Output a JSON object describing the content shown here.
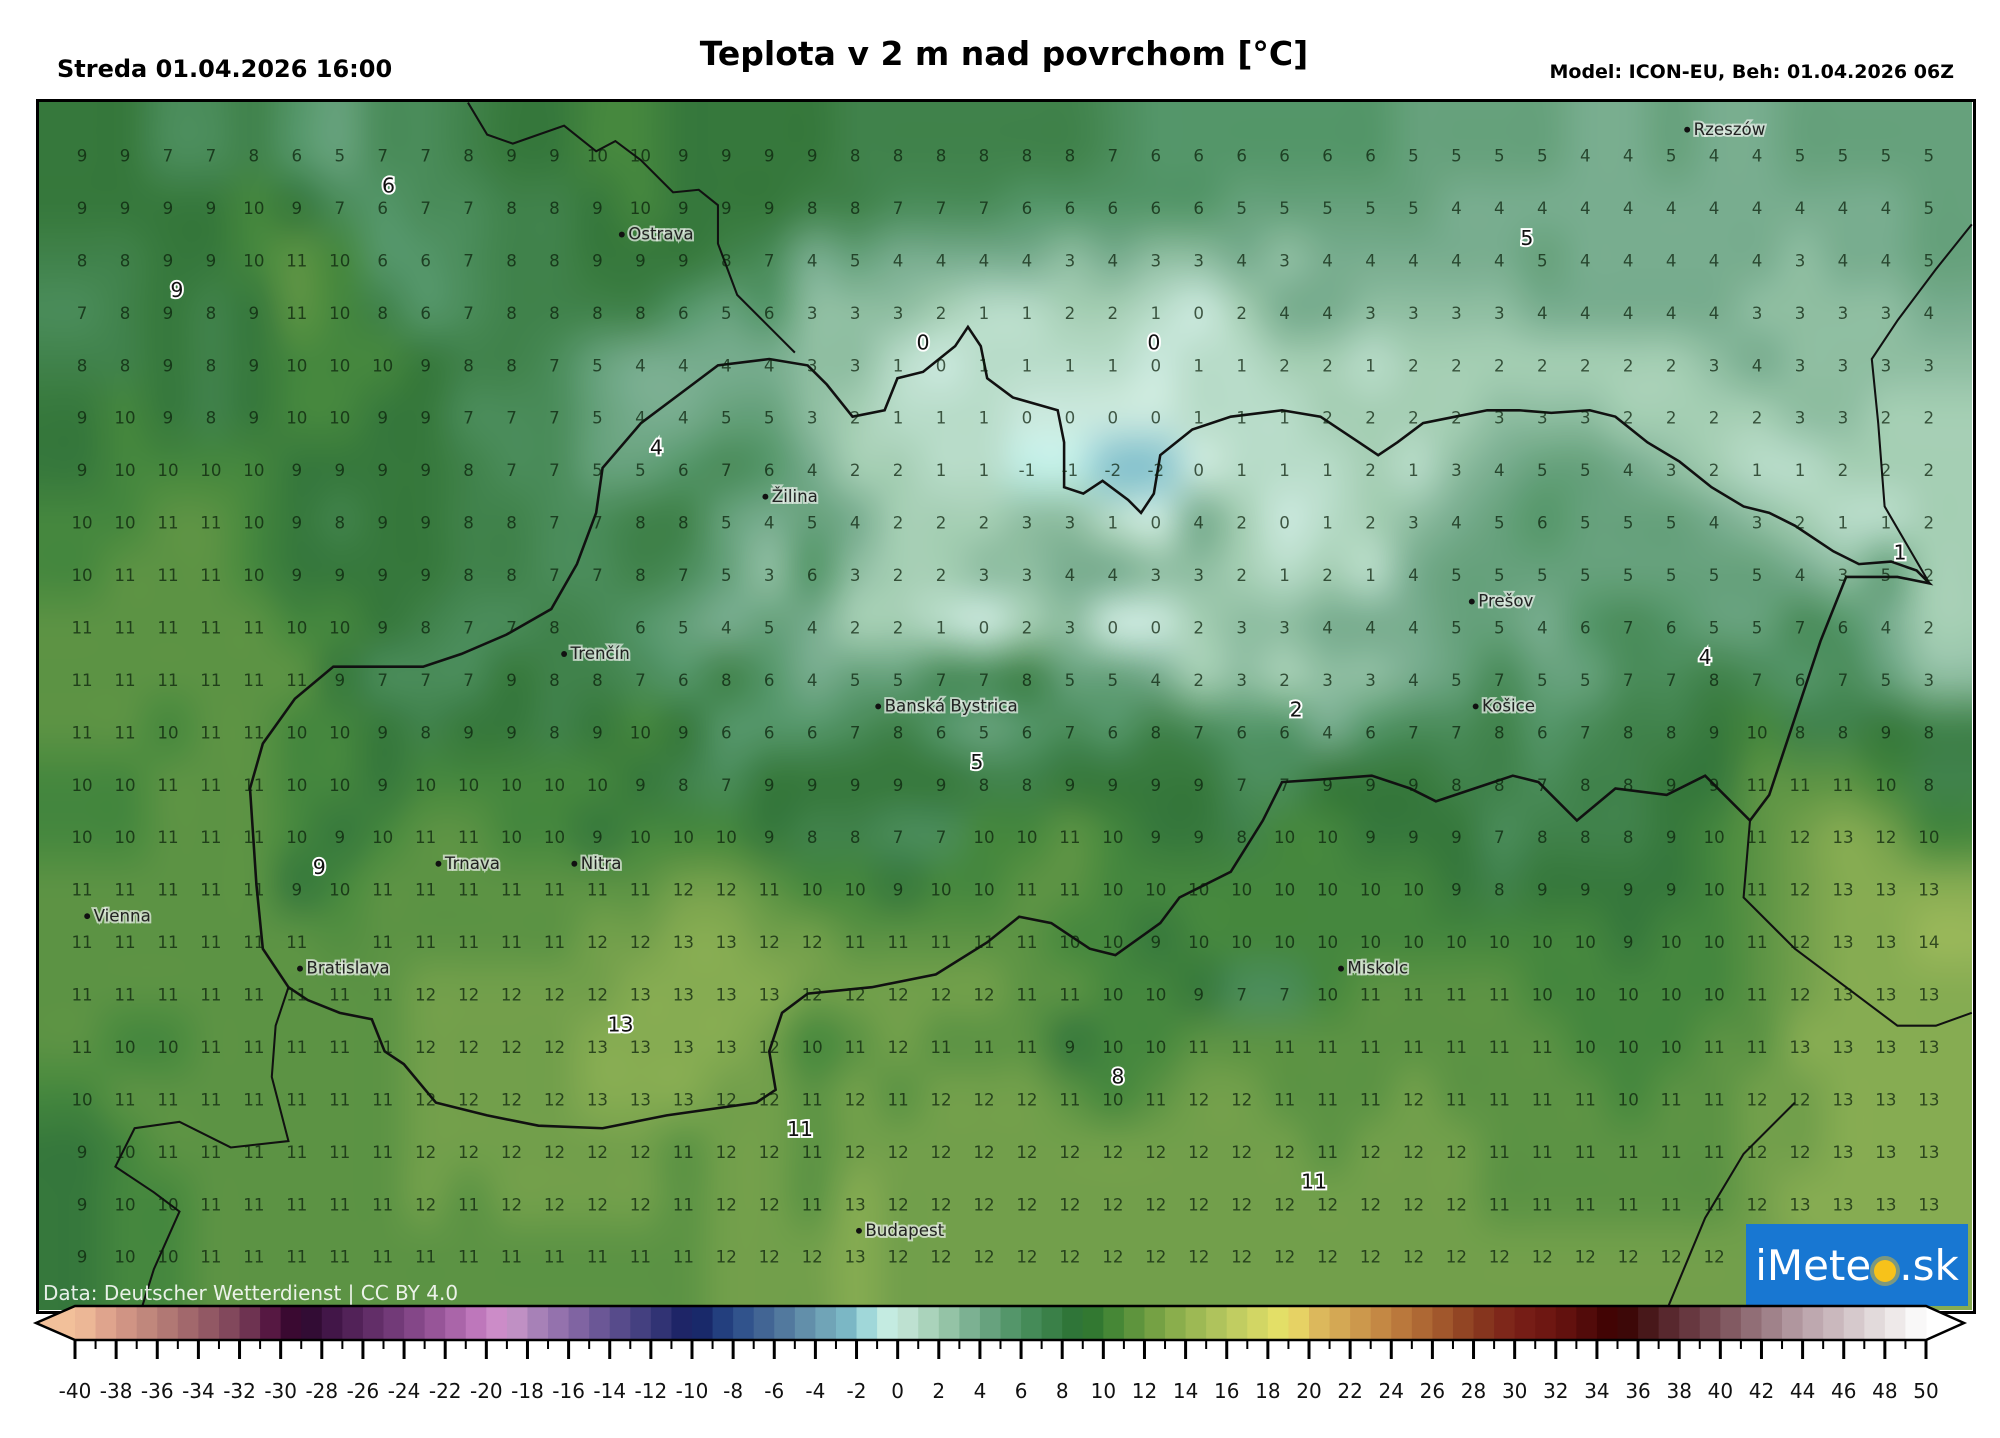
{
  "header": {
    "valid_time": "Streda 01.04.2026 16:00",
    "title": "Teplota v 2 m nad povrchom [°C]",
    "model_run": "Model: ICON-EU, Beh: 01.04.2026 06Z"
  },
  "attribution": "Data: Deutscher Wetterdienst | CC BY 4.0",
  "logo": {
    "text": "iMeteo.sk",
    "color": "#1877d2"
  },
  "cities": [
    {
      "name": "Rzeszów"
    },
    {
      "name": "Ostrava"
    },
    {
      "name": "Žilina"
    },
    {
      "name": "Prešov"
    },
    {
      "name": "Trenčín"
    },
    {
      "name": "Banská Bystrica"
    },
    {
      "name": "Košice"
    },
    {
      "name": "Trnava"
    },
    {
      "name": "Nitra"
    },
    {
      "name": "Vienna"
    },
    {
      "name": "Bratislava"
    },
    {
      "name": "Miskolc"
    },
    {
      "name": "Budapest"
    }
  ],
  "extrema_labels": [
    "6",
    "9",
    "0",
    "0",
    "5",
    "4",
    "1",
    "4",
    "2",
    "5",
    "9",
    "13",
    "8",
    "11",
    "11"
  ],
  "grid": {
    "unit": "°C",
    "values": [
      [
        9,
        9,
        7,
        7,
        8,
        6,
        5,
        7,
        7,
        8,
        9,
        9,
        10,
        10,
        9,
        9,
        9,
        9,
        8,
        8,
        8,
        8,
        8,
        8,
        7,
        6,
        6,
        6,
        6,
        6,
        6,
        5,
        5,
        5,
        5,
        4,
        4,
        5,
        4,
        4,
        5,
        5,
        5,
        5
      ],
      [
        9,
        9,
        9,
        9,
        10,
        9,
        7,
        6,
        7,
        7,
        8,
        8,
        9,
        10,
        9,
        9,
        9,
        8,
        8,
        7,
        7,
        7,
        6,
        6,
        6,
        6,
        6,
        5,
        5,
        5,
        5,
        5,
        4,
        4,
        4,
        4,
        4,
        4,
        4,
        4,
        4,
        4,
        4,
        5
      ],
      [
        8,
        8,
        9,
        9,
        10,
        11,
        10,
        6,
        6,
        7,
        8,
        8,
        9,
        9,
        9,
        8,
        7,
        4,
        5,
        4,
        4,
        4,
        4,
        3,
        4,
        3,
        3,
        4,
        3,
        4,
        4,
        4,
        4,
        4,
        5,
        4,
        4,
        4,
        4,
        4,
        3,
        4,
        4,
        5
      ],
      [
        7,
        8,
        9,
        8,
        9,
        11,
        10,
        8,
        6,
        7,
        8,
        8,
        8,
        8,
        6,
        5,
        6,
        3,
        3,
        3,
        2,
        1,
        1,
        2,
        2,
        1,
        0,
        2,
        4,
        4,
        3,
        3,
        3,
        3,
        4,
        4,
        4,
        4,
        4,
        3,
        3,
        3,
        3,
        4
      ],
      [
        8,
        8,
        9,
        8,
        9,
        10,
        10,
        10,
        9,
        8,
        8,
        7,
        5,
        4,
        4,
        4,
        4,
        3,
        3,
        1,
        0,
        1,
        1,
        1,
        1,
        0,
        1,
        1,
        2,
        2,
        1,
        2,
        2,
        2,
        2,
        2,
        2,
        2,
        3,
        4,
        3,
        3,
        3,
        3
      ],
      [
        9,
        10,
        9,
        8,
        9,
        10,
        10,
        9,
        9,
        7,
        7,
        7,
        5,
        4,
        4,
        5,
        5,
        3,
        2,
        1,
        1,
        1,
        0,
        0,
        0,
        0,
        1,
        1,
        1,
        2,
        2,
        2,
        2,
        3,
        3,
        3,
        2,
        2,
        2,
        2,
        3,
        3,
        2,
        2
      ],
      [
        9,
        10,
        10,
        10,
        10,
        9,
        9,
        9,
        9,
        8,
        7,
        7,
        5,
        5,
        6,
        7,
        6,
        4,
        2,
        2,
        1,
        1,
        -1,
        -1,
        -2,
        -2,
        0,
        1,
        1,
        1,
        2,
        1,
        3,
        4,
        5,
        5,
        4,
        3,
        2,
        1,
        1,
        2,
        2,
        2
      ],
      [
        10,
        10,
        11,
        11,
        10,
        9,
        8,
        9,
        9,
        8,
        8,
        7,
        7,
        8,
        8,
        5,
        4,
        5,
        4,
        2,
        2,
        2,
        3,
        3,
        1,
        0,
        4,
        2,
        0,
        1,
        2,
        3,
        4,
        5,
        6,
        5,
        5,
        5,
        4,
        3,
        2,
        1,
        1,
        2
      ],
      [
        10,
        11,
        11,
        11,
        10,
        9,
        9,
        9,
        9,
        8,
        8,
        7,
        7,
        8,
        7,
        5,
        3,
        6,
        3,
        2,
        2,
        3,
        3,
        4,
        4,
        3,
        3,
        2,
        1,
        2,
        1,
        4,
        5,
        5,
        5,
        5,
        5,
        5,
        5,
        5,
        4,
        3,
        5,
        2
      ],
      [
        11,
        11,
        11,
        11,
        11,
        10,
        10,
        9,
        8,
        7,
        7,
        8,
        null,
        6,
        5,
        4,
        5,
        4,
        2,
        2,
        1,
        0,
        2,
        3,
        0,
        0,
        2,
        3,
        3,
        4,
        4,
        4,
        5,
        5,
        4,
        6,
        7,
        6,
        5,
        5,
        7,
        6,
        4,
        2
      ],
      [
        11,
        11,
        11,
        11,
        11,
        11,
        9,
        7,
        7,
        7,
        9,
        8,
        8,
        7,
        6,
        8,
        6,
        4,
        5,
        5,
        7,
        7,
        8,
        5,
        5,
        4,
        2,
        3,
        2,
        3,
        3,
        4,
        5,
        7,
        5,
        5,
        7,
        7,
        8,
        7,
        6,
        7,
        5,
        3
      ],
      [
        11,
        11,
        10,
        11,
        11,
        10,
        10,
        9,
        8,
        9,
        9,
        8,
        9,
        10,
        9,
        6,
        6,
        6,
        7,
        8,
        6,
        5,
        6,
        7,
        6,
        8,
        7,
        6,
        6,
        4,
        6,
        7,
        7,
        8,
        6,
        7,
        8,
        8,
        9,
        10,
        8,
        8,
        9,
        8
      ],
      [
        10,
        10,
        11,
        11,
        11,
        10,
        10,
        9,
        10,
        10,
        10,
        10,
        10,
        9,
        8,
        7,
        9,
        9,
        9,
        9,
        9,
        8,
        8,
        9,
        9,
        9,
        9,
        7,
        7,
        9,
        9,
        9,
        8,
        8,
        7,
        8,
        8,
        9,
        9,
        11,
        11,
        11,
        10,
        8
      ],
      [
        10,
        10,
        11,
        11,
        11,
        10,
        9,
        10,
        11,
        11,
        10,
        10,
        9,
        10,
        10,
        10,
        9,
        8,
        8,
        7,
        7,
        10,
        10,
        11,
        10,
        9,
        9,
        8,
        10,
        10,
        9,
        9,
        9,
        7,
        8,
        8,
        8,
        9,
        10,
        11,
        12,
        13,
        12,
        10
      ],
      [
        11,
        11,
        11,
        11,
        11,
        9,
        10,
        11,
        11,
        11,
        11,
        11,
        11,
        11,
        12,
        12,
        11,
        10,
        10,
        9,
        10,
        10,
        11,
        11,
        10,
        10,
        10,
        10,
        10,
        10,
        10,
        10,
        9,
        8,
        9,
        9,
        9,
        9,
        10,
        11,
        12,
        13,
        13,
        13
      ],
      [
        11,
        11,
        11,
        11,
        11,
        11,
        null,
        11,
        11,
        11,
        11,
        11,
        12,
        12,
        13,
        13,
        12,
        12,
        11,
        11,
        11,
        11,
        11,
        10,
        10,
        9,
        10,
        10,
        10,
        10,
        10,
        10,
        10,
        10,
        10,
        10,
        9,
        10,
        10,
        11,
        12,
        13,
        13,
        14
      ],
      [
        11,
        11,
        11,
        11,
        11,
        11,
        11,
        11,
        12,
        12,
        12,
        12,
        12,
        13,
        13,
        13,
        13,
        12,
        12,
        12,
        12,
        12,
        11,
        11,
        10,
        10,
        9,
        7,
        7,
        10,
        11,
        11,
        11,
        11,
        10,
        10,
        10,
        10,
        10,
        11,
        12,
        13,
        13,
        13
      ],
      [
        11,
        10,
        10,
        11,
        11,
        11,
        11,
        11,
        12,
        12,
        12,
        12,
        13,
        13,
        13,
        13,
        12,
        10,
        11,
        12,
        11,
        11,
        11,
        9,
        10,
        10,
        11,
        11,
        11,
        11,
        11,
        11,
        11,
        11,
        11,
        10,
        10,
        10,
        11,
        11,
        13,
        13,
        13,
        13
      ],
      [
        10,
        11,
        11,
        11,
        11,
        11,
        11,
        11,
        12,
        12,
        12,
        12,
        13,
        13,
        13,
        12,
        12,
        11,
        12,
        11,
        12,
        12,
        12,
        11,
        10,
        11,
        12,
        12,
        11,
        11,
        11,
        12,
        11,
        11,
        11,
        11,
        10,
        11,
        11,
        12,
        12,
        13,
        13,
        13
      ],
      [
        9,
        10,
        11,
        11,
        11,
        11,
        11,
        11,
        12,
        12,
        12,
        12,
        12,
        12,
        11,
        12,
        12,
        11,
        12,
        12,
        12,
        12,
        12,
        12,
        12,
        12,
        12,
        12,
        12,
        11,
        12,
        12,
        12,
        11,
        11,
        11,
        11,
        11,
        11,
        12,
        12,
        13,
        13,
        13
      ],
      [
        9,
        10,
        10,
        11,
        11,
        11,
        11,
        11,
        12,
        11,
        12,
        12,
        12,
        12,
        11,
        12,
        12,
        11,
        13,
        12,
        12,
        12,
        12,
        12,
        12,
        12,
        12,
        12,
        12,
        12,
        12,
        12,
        12,
        11,
        11,
        11,
        11,
        11,
        11,
        12,
        13,
        13,
        13,
        13
      ],
      [
        9,
        10,
        10,
        11,
        11,
        11,
        11,
        11,
        11,
        11,
        11,
        11,
        11,
        11,
        11,
        12,
        12,
        12,
        13,
        12,
        12,
        12,
        12,
        12,
        12,
        12,
        12,
        12,
        12,
        12,
        12,
        12,
        12,
        12,
        12,
        12,
        12,
        12,
        12,
        null,
        null,
        null,
        null,
        null
      ]
    ]
  },
  "colorbar": {
    "min": -40,
    "max": 50,
    "tick_step": 2,
    "extend": "both",
    "stops": [
      [
        -40,
        "#f2c09a"
      ],
      [
        -38,
        "#d89a88"
      ],
      [
        -36,
        "#b88078"
      ],
      [
        -34,
        "#9a6068"
      ],
      [
        -32,
        "#7a4058"
      ],
      [
        -30,
        "#4a0a3a"
      ],
      [
        -29,
        "#2a0828"
      ],
      [
        -28,
        "#3a1040"
      ],
      [
        -26,
        "#5a2860"
      ],
      [
        -24,
        "#7a4080"
      ],
      [
        -22,
        "#a05ca0"
      ],
      [
        -20,
        "#c880c4"
      ],
      [
        -19,
        "#d098cc"
      ],
      [
        -18,
        "#b088bc"
      ],
      [
        -16,
        "#8a6aa8"
      ],
      [
        -14,
        "#605090"
      ],
      [
        -12,
        "#3a3a7a"
      ],
      [
        -10,
        "#141e60"
      ],
      [
        -8,
        "#284a88"
      ],
      [
        -6,
        "#4a6e98"
      ],
      [
        -4,
        "#6a9ab0"
      ],
      [
        -2,
        "#80c0cc"
      ],
      [
        -1,
        "#bfeee6"
      ],
      [
        0,
        "#c8e8dc"
      ],
      [
        2,
        "#a0ccb0"
      ],
      [
        4,
        "#70a888"
      ],
      [
        6,
        "#4a9060"
      ],
      [
        9,
        "#2a7030"
      ],
      [
        10,
        "#3a8032"
      ],
      [
        12,
        "#6a9a40"
      ],
      [
        14,
        "#94b450"
      ],
      [
        16,
        "#b8c860"
      ],
      [
        19,
        "#ece468"
      ],
      [
        20,
        "#e0c060"
      ],
      [
        22,
        "#d0a050"
      ],
      [
        24,
        "#c08040"
      ],
      [
        26,
        "#a86030"
      ],
      [
        28,
        "#8a3c20"
      ],
      [
        30,
        "#7a2018"
      ],
      [
        32,
        "#6a1410"
      ],
      [
        34,
        "#4a0808"
      ],
      [
        35,
        "#3a0000"
      ],
      [
        36,
        "#401010"
      ],
      [
        38,
        "#603038"
      ],
      [
        40,
        "#7a5058"
      ],
      [
        42,
        "#987880"
      ],
      [
        44,
        "#b8a0a8"
      ],
      [
        46,
        "#d0c0c4"
      ],
      [
        48,
        "#e8e2e2"
      ],
      [
        50,
        "#ffffff"
      ]
    ]
  }
}
